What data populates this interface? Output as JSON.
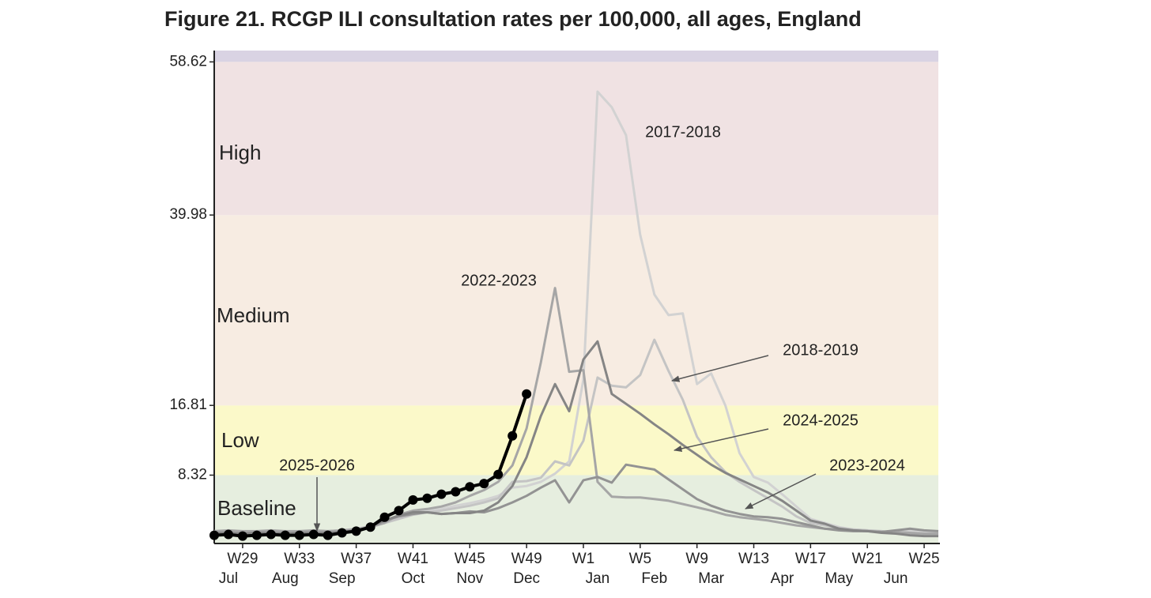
{
  "chart_data": {
    "type": "line",
    "title": "Figure 21. RCGP ILI consultation rates per 100,000, all ages, England",
    "categories": [
      null,
      null,
      "W29",
      null,
      null,
      null,
      "W33",
      null,
      null,
      null,
      "W37",
      null,
      null,
      null,
      "W41",
      null,
      null,
      null,
      "W45",
      null,
      null,
      null,
      "W49",
      null,
      null,
      null,
      "W1",
      null,
      null,
      null,
      "W5",
      null,
      null,
      null,
      "W9",
      null,
      null,
      null,
      "W13",
      null,
      null,
      null,
      "W17",
      null,
      null,
      null,
      "W21",
      null,
      null,
      null,
      "W25",
      null
    ],
    "month_ticks": [
      {
        "value": 1,
        "label": "Jul"
      },
      {
        "value": 5,
        "label": "Aug"
      },
      {
        "value": 9,
        "label": "Sep"
      },
      {
        "value": 14,
        "label": "Oct"
      },
      {
        "value": 18,
        "label": "Nov"
      },
      {
        "value": 22,
        "label": "Dec"
      },
      {
        "value": 27,
        "label": "Jan"
      },
      {
        "value": 31,
        "label": "Feb"
      },
      {
        "value": 35,
        "label": "Mar"
      },
      {
        "value": 40,
        "label": "Apr"
      },
      {
        "value": 44,
        "label": "May"
      },
      {
        "value": 48,
        "label": "Jun"
      }
    ],
    "ylim": [
      0,
      60
    ],
    "yticks": [
      8.32,
      16.81,
      39.98,
      58.62
    ],
    "bands": [
      {
        "name": "Baseline",
        "upper": 8.32,
        "color": "#e6eedf"
      },
      {
        "name": "Low",
        "upper": 16.81,
        "color": "#fbf9c9"
      },
      {
        "name": "Medium",
        "upper": 39.98,
        "color": "#f7ece2"
      },
      {
        "name": "High",
        "upper": 58.62,
        "color": "#f0e2e3"
      }
    ],
    "top_band_color": "#d9d3e3",
    "series": [
      {
        "name": "2017-2018",
        "color": "#d2d2d2",
        "values": [
          1.2,
          1.2,
          1.1,
          1.2,
          1.2,
          1.1,
          1.2,
          1.2,
          1.3,
          1.4,
          1.6,
          2.0,
          2.6,
          3.2,
          3.8,
          4.0,
          4.2,
          4.6,
          4.9,
          5.3,
          5.8,
          6.8,
          7.0,
          7.5,
          8.5,
          10.0,
          20.0,
          55.0,
          53.1,
          49.7,
          37.6,
          30.3,
          27.8,
          28.0,
          19.4,
          20.7,
          16.8,
          11.0,
          8.1,
          7.4,
          6.0,
          4.5,
          3.0,
          2.5,
          2.0,
          1.7,
          1.6,
          1.4,
          1.3,
          1.6,
          1.4,
          1.2
        ]
      },
      {
        "name": "2018-2019",
        "color": "#c4c4c4",
        "values": [
          1.5,
          1.5,
          1.4,
          1.5,
          1.5,
          1.4,
          1.5,
          1.5,
          1.5,
          1.6,
          1.8,
          2.1,
          2.5,
          3.0,
          3.5,
          3.8,
          4.0,
          4.3,
          4.6,
          5.0,
          5.5,
          7.5,
          7.6,
          8.0,
          10.0,
          9.5,
          12.5,
          20.2,
          19.2,
          19.0,
          20.5,
          24.8,
          21.0,
          17.5,
          13.0,
          10.5,
          8.7,
          7.5,
          6.5,
          5.5,
          4.5,
          3.3,
          2.5,
          2.2,
          1.9,
          1.7,
          1.6,
          1.5,
          1.3,
          1.2,
          1.0,
          0.9
        ]
      },
      {
        "name": "2022-2023",
        "color": "#a6a6a6",
        "values": [
          1.5,
          1.6,
          1.5,
          1.5,
          1.6,
          1.5,
          1.5,
          1.6,
          1.5,
          1.6,
          1.7,
          2.0,
          2.5,
          3.5,
          4.0,
          4.2,
          4.5,
          5.0,
          5.8,
          6.5,
          7.5,
          9.5,
          14.0,
          22.0,
          31.1,
          20.9,
          21.1,
          7.5,
          5.7,
          5.6,
          5.6,
          5.4,
          5.2,
          4.8,
          4.4,
          4.0,
          3.5,
          3.2,
          3.0,
          2.8,
          2.5,
          2.2,
          2.0,
          1.8,
          1.7,
          1.6,
          1.5,
          1.4,
          1.4,
          1.3,
          1.2,
          1.2
        ]
      },
      {
        "name": "2023-2024",
        "color": "#939393",
        "values": [
          1.2,
          1.3,
          1.2,
          1.2,
          1.3,
          1.2,
          1.2,
          1.3,
          1.2,
          1.3,
          1.5,
          2.0,
          2.8,
          3.3,
          3.6,
          3.8,
          3.6,
          3.7,
          3.9,
          3.8,
          4.3,
          5.0,
          5.8,
          6.8,
          7.7,
          5.0,
          7.7,
          8.1,
          7.4,
          9.6,
          9.3,
          9.0,
          7.8,
          6.6,
          5.4,
          4.6,
          4.0,
          3.6,
          3.3,
          3.2,
          3.0,
          2.6,
          2.2,
          1.8,
          1.6,
          1.5,
          1.5,
          1.4,
          1.6,
          1.8,
          1.6,
          1.5
        ]
      },
      {
        "name": "2024-2025",
        "color": "#858585",
        "values": [
          1.3,
          1.3,
          1.2,
          1.3,
          1.3,
          1.2,
          1.3,
          1.3,
          1.3,
          1.4,
          1.6,
          2.1,
          2.8,
          3.4,
          3.8,
          3.8,
          3.6,
          3.7,
          3.7,
          4.0,
          5.0,
          7.0,
          10.5,
          15.5,
          19.4,
          16.1,
          22.4,
          24.6,
          18.2,
          17.0,
          15.8,
          14.5,
          13.3,
          12.0,
          10.8,
          9.6,
          8.6,
          7.8,
          7.0,
          6.2,
          5.2,
          4.0,
          2.8,
          2.4,
          1.8,
          1.6,
          1.5,
          1.3,
          1.2,
          1.0,
          0.9,
          0.9
        ]
      },
      {
        "name": "2025-2026",
        "color": "#000000",
        "markers": true,
        "values": [
          1.0,
          1.1,
          0.9,
          1.0,
          1.1,
          1.0,
          1.0,
          1.1,
          1.0,
          1.3,
          1.5,
          2.0,
          3.2,
          4.0,
          5.3,
          5.5,
          6.0,
          6.3,
          6.9,
          7.3,
          8.4,
          13.1,
          18.2,
          null,
          null,
          null,
          null,
          null,
          null,
          null,
          null,
          null,
          null,
          null,
          null,
          null,
          null,
          null,
          null,
          null,
          null,
          null,
          null,
          null,
          null,
          null,
          null,
          null,
          null,
          null,
          null,
          null
        ]
      }
    ]
  }
}
